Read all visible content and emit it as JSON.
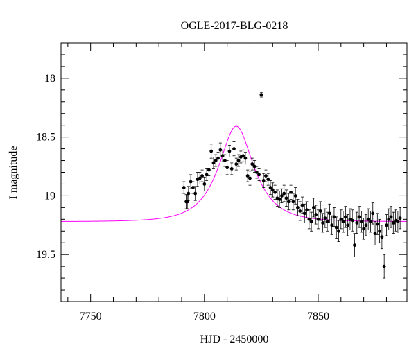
{
  "chart_data": {
    "type": "scatter",
    "title": "OGLE-2017-BLG-0218",
    "xlabel": "HJD - 2450000",
    "ylabel": "I magnitude",
    "xlim": [
      7737,
      7889
    ],
    "ylim": [
      19.9,
      17.7
    ],
    "y_inverted": true,
    "grid": false,
    "legend": "none",
    "x_major_ticks": [
      7750,
      7800,
      7850
    ],
    "x_tick_labels": [
      "7750",
      "7800",
      "7850"
    ],
    "x_minor_step": 10,
    "y_major_ticks": [
      18,
      18.5,
      19,
      19.5
    ],
    "y_tick_labels": [
      "18",
      "18.5",
      "19",
      "19.5"
    ],
    "y_minor_step": 0.1,
    "colors": {
      "data": "#000000",
      "model": "#ff00ff",
      "axes": "#000000"
    },
    "model": {
      "name": "",
      "color": "#ff00ff",
      "baseline_mag": 19.22,
      "t0": 7814,
      "u0": 0.52,
      "tE": 13
    },
    "series": [
      {
        "type": "points_with_errors",
        "color": "#000000",
        "x": [
          7791.0,
          7792.0,
          7792.5,
          7793.0,
          7794.0,
          7795.0,
          7796.0,
          7797.0,
          7798.0,
          7799.0,
          7800.0,
          7801.0,
          7802.0,
          7803.0,
          7804.0,
          7805.0,
          7806.0,
          7807.0,
          7808.0,
          7809.0,
          7810.0,
          7811.0,
          7812.0,
          7813.0,
          7814.0,
          7815.0,
          7816.0,
          7817.0,
          7818.0,
          7819.0,
          7820.0,
          7821.0,
          7822.0,
          7823.0,
          7824.0,
          7825.0,
          7826.0,
          7827.0,
          7828.0,
          7829.0,
          7830.0,
          7831.0,
          7832.0,
          7833.0,
          7834.0,
          7835.0,
          7836.0,
          7837.0,
          7838.0,
          7839.0,
          7840.0,
          7841.0,
          7842.0,
          7843.0,
          7844.0,
          7845.0,
          7846.0,
          7847.0,
          7848.0,
          7849.0,
          7850.0,
          7851.0,
          7852.0,
          7853.0,
          7854.0,
          7855.0,
          7856.0,
          7857.0,
          7858.0,
          7859.0,
          7860.0,
          7861.0,
          7862.0,
          7863.0,
          7864.0,
          7865.0,
          7866.0,
          7867.0,
          7868.0,
          7869.0,
          7870.0,
          7871.0,
          7872.0,
          7873.0,
          7874.0,
          7875.0,
          7876.0,
          7877.0,
          7878.0,
          7879.0,
          7880.0,
          7881.0,
          7882.0,
          7883.0,
          7884.0,
          7885.0,
          7886.0
        ],
        "y": [
          18.93,
          19.05,
          19.05,
          18.98,
          18.88,
          18.93,
          18.98,
          18.86,
          18.85,
          18.83,
          18.9,
          18.82,
          18.78,
          18.62,
          18.72,
          18.7,
          18.68,
          18.61,
          18.66,
          18.7,
          18.76,
          18.62,
          18.77,
          18.6,
          18.73,
          18.7,
          18.67,
          18.66,
          18.68,
          18.83,
          18.85,
          18.73,
          18.75,
          18.8,
          18.82,
          18.14,
          18.87,
          18.83,
          18.86,
          18.93,
          18.95,
          18.97,
          19.02,
          19.03,
          19.0,
          18.98,
          19.02,
          19.05,
          18.97,
          19.05,
          19.0,
          19.1,
          19.13,
          19.08,
          19.15,
          19.12,
          19.2,
          19.22,
          19.1,
          19.16,
          19.2,
          19.13,
          19.23,
          19.19,
          19.22,
          19.15,
          19.25,
          19.18,
          19.27,
          19.3,
          19.2,
          19.22,
          19.18,
          19.25,
          19.2,
          19.21,
          19.42,
          19.23,
          19.18,
          19.22,
          19.28,
          19.25,
          19.2,
          19.22,
          19.15,
          19.32,
          19.24,
          19.3,
          19.35,
          19.6,
          19.25,
          19.2,
          19.18,
          19.23,
          19.21,
          19.22,
          19.19
        ],
        "err": [
          0.05,
          0.06,
          0.06,
          0.06,
          0.06,
          0.05,
          0.06,
          0.06,
          0.05,
          0.05,
          0.06,
          0.05,
          0.05,
          0.06,
          0.05,
          0.05,
          0.05,
          0.06,
          0.05,
          0.05,
          0.06,
          0.05,
          0.05,
          0.06,
          0.05,
          0.05,
          0.05,
          0.05,
          0.05,
          0.05,
          0.06,
          0.05,
          0.05,
          0.05,
          0.05,
          0.02,
          0.06,
          0.05,
          0.05,
          0.06,
          0.06,
          0.06,
          0.07,
          0.07,
          0.06,
          0.07,
          0.07,
          0.07,
          0.06,
          0.07,
          0.07,
          0.07,
          0.08,
          0.07,
          0.08,
          0.07,
          0.08,
          0.08,
          0.08,
          0.08,
          0.08,
          0.08,
          0.08,
          0.08,
          0.08,
          0.08,
          0.08,
          0.08,
          0.09,
          0.09,
          0.08,
          0.09,
          0.09,
          0.09,
          0.09,
          0.09,
          0.1,
          0.09,
          0.09,
          0.09,
          0.09,
          0.09,
          0.09,
          0.09,
          0.09,
          0.1,
          0.09,
          0.1,
          0.1,
          0.1,
          0.09,
          0.09,
          0.09,
          0.09,
          0.09,
          0.09,
          0.09
        ]
      }
    ]
  }
}
